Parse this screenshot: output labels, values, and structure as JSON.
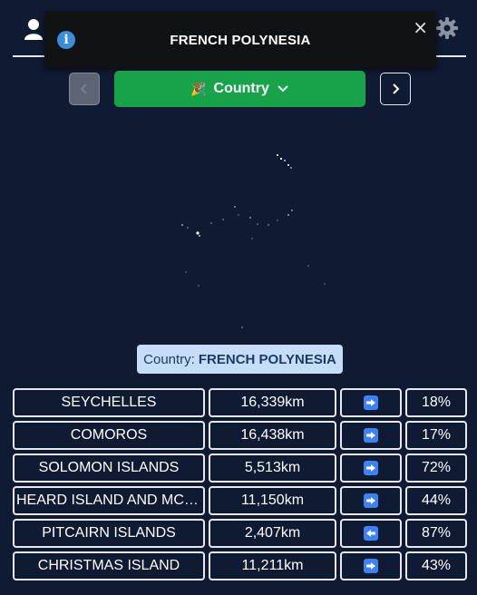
{
  "toast": {
    "message": "FRENCH POLYNESIA",
    "close": "×"
  },
  "mode_button": {
    "label": "Country",
    "icon": "party-popper-icon"
  },
  "country_label": {
    "prefix": "Country:",
    "name": "FRENCH POLYNESIA"
  },
  "guesses": [
    {
      "name": "SEYCHELLES",
      "distance": "16,339km",
      "direction": "right",
      "proximity": "18%"
    },
    {
      "name": "COMOROS",
      "distance": "16,438km",
      "direction": "right",
      "proximity": "17%"
    },
    {
      "name": "SOLOMON ISLANDS",
      "distance": "5,513km",
      "direction": "right",
      "proximity": "72%"
    },
    {
      "name": "HEARD ISLAND AND MCDONALD ISLANDS",
      "distance": "11,150km",
      "direction": "right",
      "proximity": "44%"
    },
    {
      "name": "PITCAIRN ISLANDS",
      "distance": "2,407km",
      "direction": "left",
      "proximity": "87%"
    },
    {
      "name": "CHRISTMAS ISLAND",
      "distance": "11,211km",
      "direction": "right",
      "proximity": "43%"
    }
  ],
  "colors": {
    "background": "#0f1a33",
    "accent_green": "#16a34a",
    "arrow_blue": "#3b82f6",
    "label_bg": "#c7ddf7"
  }
}
